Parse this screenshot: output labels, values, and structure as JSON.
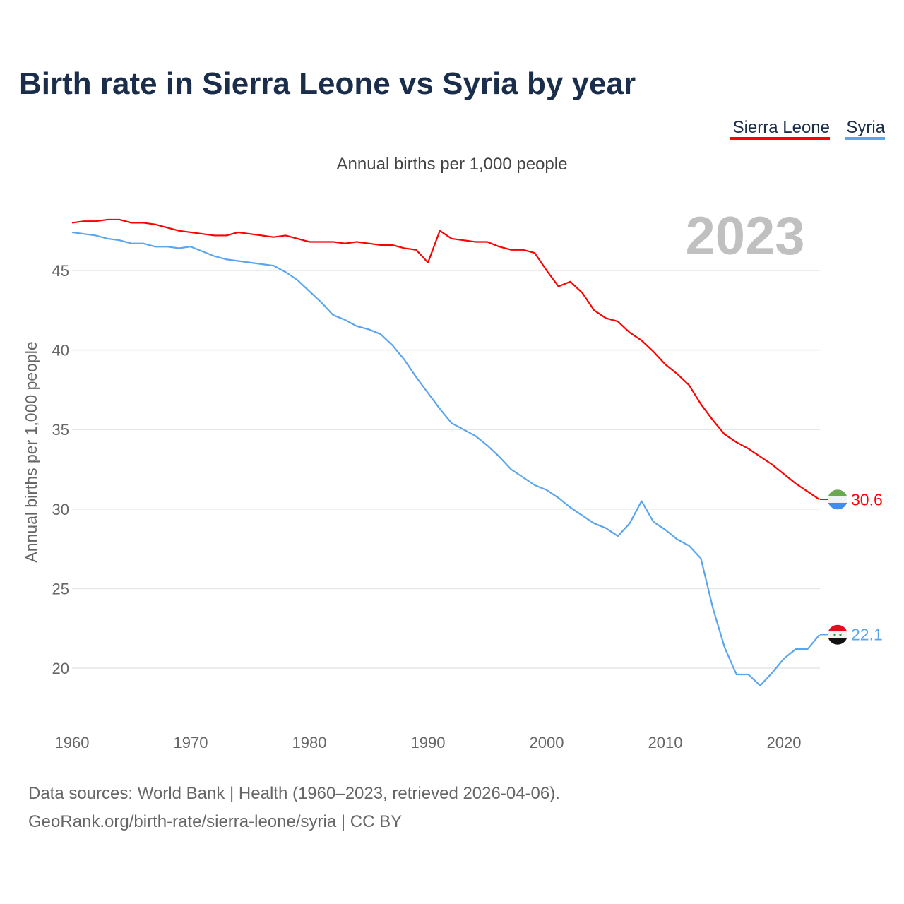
{
  "chart_data": {
    "type": "line",
    "title": "Birth rate in Sierra Leone vs Syria by year",
    "subtitle": "Annual births per 1,000 people",
    "ylabel": "Annual births per 1,000 people",
    "xlabel": "",
    "year_label": "2023",
    "ylim": [
      17,
      49.5
    ],
    "xlim": [
      1960,
      2023
    ],
    "yticks": [
      "20",
      "25",
      "30",
      "35",
      "40",
      "45"
    ],
    "xticks": [
      "1960",
      "1970",
      "1980",
      "1990",
      "2000",
      "2010",
      "2020"
    ],
    "grid": true,
    "legend_position": "top-right",
    "x": [
      1960,
      1961,
      1962,
      1963,
      1964,
      1965,
      1966,
      1967,
      1968,
      1969,
      1970,
      1971,
      1972,
      1973,
      1974,
      1975,
      1976,
      1977,
      1978,
      1979,
      1980,
      1981,
      1982,
      1983,
      1984,
      1985,
      1986,
      1987,
      1988,
      1989,
      1990,
      1991,
      1992,
      1993,
      1994,
      1995,
      1996,
      1997,
      1998,
      1999,
      2000,
      2001,
      2002,
      2003,
      2004,
      2005,
      2006,
      2007,
      2008,
      2009,
      2010,
      2011,
      2012,
      2013,
      2014,
      2015,
      2016,
      2017,
      2018,
      2019,
      2020,
      2021,
      2022,
      2023
    ],
    "series": [
      {
        "name": "Sierra Leone",
        "color": "#ff0000",
        "end_label": "30.6",
        "values": [
          48.0,
          48.1,
          48.1,
          48.2,
          48.2,
          48.0,
          48.0,
          47.9,
          47.7,
          47.5,
          47.4,
          47.3,
          47.2,
          47.2,
          47.4,
          47.3,
          47.2,
          47.1,
          47.2,
          47.0,
          46.8,
          46.8,
          46.8,
          46.7,
          46.8,
          46.7,
          46.6,
          46.6,
          46.4,
          46.3,
          45.5,
          47.5,
          47.0,
          46.9,
          46.8,
          46.8,
          46.5,
          46.3,
          46.3,
          46.1,
          45.0,
          44.0,
          44.3,
          43.6,
          42.5,
          42.0,
          41.8,
          41.1,
          40.6,
          39.9,
          39.1,
          38.5,
          37.8,
          36.6,
          35.6,
          34.7,
          34.2,
          33.8,
          33.3,
          32.8,
          32.2,
          31.6,
          31.1,
          30.6
        ]
      },
      {
        "name": "Syria",
        "color": "#5aa5ee",
        "end_label": "22.1",
        "values": [
          47.4,
          47.3,
          47.2,
          47.0,
          46.9,
          46.7,
          46.7,
          46.5,
          46.5,
          46.4,
          46.5,
          46.2,
          45.9,
          45.7,
          45.6,
          45.5,
          45.4,
          45.3,
          44.9,
          44.4,
          43.7,
          43.0,
          42.2,
          41.9,
          41.5,
          41.3,
          41.0,
          40.3,
          39.4,
          38.3,
          37.3,
          36.3,
          35.4,
          35.0,
          34.6,
          34.0,
          33.3,
          32.5,
          32.0,
          31.5,
          31.2,
          30.7,
          30.1,
          29.6,
          29.1,
          28.8,
          28.3,
          29.1,
          30.5,
          29.2,
          28.7,
          28.1,
          27.7,
          26.9,
          23.8,
          21.3,
          19.6,
          19.6,
          18.9,
          19.7,
          20.6,
          21.2,
          21.2,
          22.1
        ]
      }
    ]
  },
  "footer": {
    "line1": "Data sources: World Bank | Health (1960–2023, retrieved 2026-04-06).",
    "line2": "GeoRank.org/birth-rate/sierra-leone/syria | CC BY"
  }
}
